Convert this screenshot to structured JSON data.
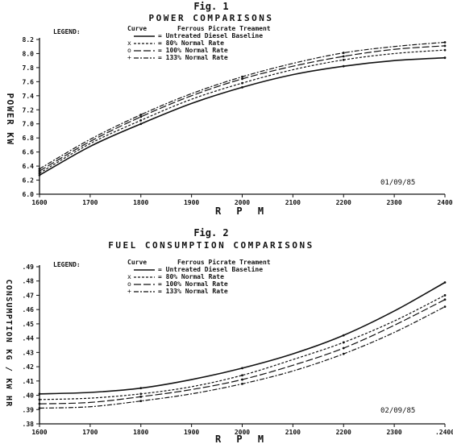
{
  "chart_data": [
    {
      "type": "line",
      "figure_label": "Fig. 1",
      "title": "POWER COMPARISONS",
      "xlabel": "R P M",
      "ylabel": "POWER KW",
      "date_stamp": "01/09/85",
      "legend": {
        "label": "LEGEND:",
        "header_curve": "Curve",
        "header_desc": "Ferrous Picrate Treament",
        "entries": [
          "= Untreated Diesel Baseline",
          "= 80% Normal Rate",
          "= 100% Normal Rate",
          "= 133% Normal Rate"
        ],
        "markers": [
          "",
          "x",
          "o",
          "+"
        ]
      },
      "xlim": [
        1600,
        2400
      ],
      "ylim": [
        6.0,
        8.2
      ],
      "x_ticks": [
        "1600",
        "1700",
        "1800",
        "1900",
        "2000",
        "2100",
        "2200",
        "2300",
        "2400"
      ],
      "y_ticks": [
        "6.0",
        "6.2",
        "6.4",
        "6.6",
        "6.8",
        "7.0",
        "7.2",
        "7.4",
        "7.6",
        "7.8",
        "8.0",
        "8.2"
      ],
      "x": [
        1600,
        1700,
        1800,
        1900,
        2000,
        2100,
        2200,
        2300,
        2400
      ],
      "series": [
        {
          "values": [
            6.27,
            6.68,
            7.0,
            7.29,
            7.52,
            7.7,
            7.82,
            7.9,
            7.94
          ]
        },
        {
          "values": [
            6.3,
            6.72,
            7.05,
            7.35,
            7.58,
            7.77,
            7.91,
            8.0,
            8.05
          ]
        },
        {
          "values": [
            6.33,
            6.75,
            7.1,
            7.4,
            7.64,
            7.82,
            7.96,
            8.06,
            8.11
          ]
        },
        {
          "values": [
            6.36,
            6.78,
            7.13,
            7.43,
            7.67,
            7.86,
            8.01,
            8.1,
            8.16
          ]
        }
      ]
    },
    {
      "type": "line",
      "figure_label": "Fig. 2",
      "title": "FUEL CONSUMPTION COMPARISONS",
      "xlabel": "R P M",
      "ylabel": "CONSUMPTION KG / KW HR",
      "date_stamp": "02/09/85",
      "legend": {
        "label": "LEGEND:",
        "header_curve": "Curve",
        "header_desc": "Ferrous Picrate Treament",
        "entries": [
          "= Untreated Diesel Baseline",
          "= 80% Normal Rate",
          "= 100% Normal Rate",
          "= 133% Normal Rate"
        ],
        "markers": [
          "",
          "x",
          "o",
          "+"
        ]
      },
      "xlim": [
        1600,
        2400
      ],
      "ylim": [
        0.38,
        0.49
      ],
      "x_ticks": [
        "1600",
        "1700",
        "1800",
        "1900",
        "2000",
        "2100",
        "2200",
        "2300",
        ".2400"
      ],
      "y_ticks": [
        ".38",
        ".39",
        ".40",
        ".41",
        ".42",
        ".43",
        ".44",
        ".45",
        ".46",
        ".47",
        ".48",
        ".49"
      ],
      "x": [
        1600,
        1700,
        1800,
        1900,
        2000,
        2100,
        2200,
        2300,
        2400
      ],
      "series": [
        {
          "values": [
            0.401,
            0.402,
            0.405,
            0.411,
            0.419,
            0.429,
            0.442,
            0.459,
            0.479
          ]
        },
        {
          "values": [
            0.397,
            0.398,
            0.401,
            0.406,
            0.414,
            0.425,
            0.437,
            0.452,
            0.47
          ]
        },
        {
          "values": [
            0.394,
            0.395,
            0.399,
            0.404,
            0.411,
            0.421,
            0.433,
            0.449,
            0.467
          ]
        },
        {
          "values": [
            0.391,
            0.392,
            0.396,
            0.401,
            0.408,
            0.417,
            0.429,
            0.444,
            0.462
          ]
        }
      ]
    }
  ]
}
